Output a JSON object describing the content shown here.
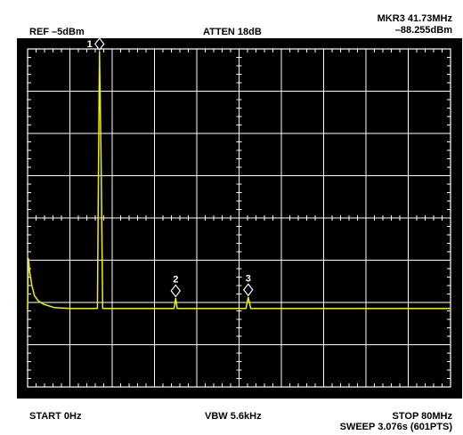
{
  "header": {
    "ref": "REF –5dBm",
    "atten": "ATTEN 18dB",
    "marker_name": "MKR3 41.73MHz",
    "marker_level": "–88.255dBm"
  },
  "footer": {
    "start": "START 0Hz",
    "vbw": "VBW 5.6kHz",
    "stop": "STOP 80MHz",
    "sweep": "SWEEP 3.076s (601PTS)"
  },
  "colors": {
    "trace": "#f0f000",
    "grid": "#ffffff",
    "screen": "#000000"
  },
  "chart_data": {
    "type": "line",
    "x_unit": "MHz",
    "xlim": [
      0,
      80
    ],
    "divisions": {
      "x": 10,
      "y": 8
    },
    "grid": true,
    "series": [
      {
        "x": [
          0,
          0.15,
          0.4,
          0.8,
          1.3,
          2,
          3,
          5,
          8,
          10,
          12,
          13.2,
          13.4,
          13.6,
          13.9,
          14.2,
          14.5,
          16,
          20,
          24,
          27,
          27.7,
          28.0,
          28.3,
          29,
          32,
          36,
          40,
          41.3,
          41.73,
          42.2,
          43,
          46,
          50,
          55,
          60,
          65,
          70,
          75,
          80
        ],
        "y": [
          0.23,
          0.38,
          0.34,
          0.3,
          0.27,
          0.255,
          0.245,
          0.235,
          0.232,
          0.232,
          0.232,
          0.232,
          0.64,
          0.992,
          0.68,
          0.232,
          0.232,
          0.232,
          0.232,
          0.232,
          0.232,
          0.232,
          0.262,
          0.232,
          0.232,
          0.232,
          0.232,
          0.232,
          0.232,
          0.265,
          0.232,
          0.232,
          0.232,
          0.232,
          0.232,
          0.232,
          0.232,
          0.232,
          0.232,
          0.232
        ]
      }
    ],
    "markers": [
      {
        "label": "1",
        "x": 13.6,
        "y": 0.992
      },
      {
        "label": "2",
        "x": 28.0,
        "y": 0.262
      },
      {
        "label": "3",
        "x": 41.73,
        "y": 0.265
      }
    ]
  }
}
